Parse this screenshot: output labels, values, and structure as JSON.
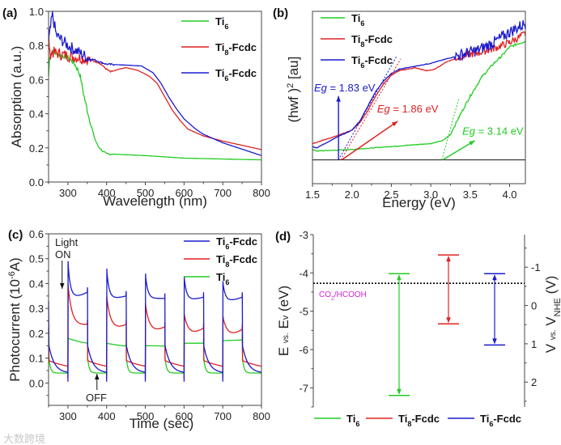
{
  "colors": {
    "Ti6": "#22cc22",
    "Ti8-Fcdc": "#e02020",
    "Ti6-Fcdc": "#1a1ad0",
    "redox": "#e020e0",
    "axis": "#444444"
  },
  "series_names": {
    "Ti6": {
      "base": "Ti",
      "sub": "6",
      "suffix": ""
    },
    "Ti8-Fcdc": {
      "base": "Ti",
      "sub": "8",
      "suffix": "-Fcdc"
    },
    "Ti6-Fcdc": {
      "base": "Ti",
      "sub": "6",
      "suffix": "-Fcdc"
    }
  },
  "watermark": "大数跨境",
  "chart_data": [
    {
      "panel": "(a)",
      "type": "line",
      "xlabel": "Wavelength (nm)",
      "ylabel": "Absorption (a.u.)",
      "xlim": [
        250,
        800
      ],
      "ylim": [
        0,
        1.0
      ],
      "xticks": [
        300,
        400,
        500,
        600,
        700,
        800
      ],
      "yticks": [
        0.0,
        0.2,
        0.4,
        0.6,
        0.8,
        1.0
      ],
      "legend_order": [
        "Ti6",
        "Ti8-Fcdc",
        "Ti6-Fcdc"
      ],
      "legend": "top-right",
      "series": [
        {
          "key": "Ti6",
          "x": [
            250,
            253,
            260,
            300,
            315,
            325,
            332,
            340,
            350,
            360,
            370,
            378,
            390,
            400,
            450,
            500,
            600,
            700,
            800
          ],
          "y": [
            0.62,
            0.74,
            0.76,
            0.73,
            0.7,
            0.66,
            0.62,
            0.52,
            0.42,
            0.33,
            0.25,
            0.21,
            0.18,
            0.165,
            0.16,
            0.155,
            0.14,
            0.135,
            0.13
          ]
        },
        {
          "key": "Ti8-Fcdc",
          "x": [
            250,
            253,
            260,
            300,
            350,
            380,
            400,
            410,
            430,
            450,
            480,
            510,
            530,
            550,
            570,
            590,
            610,
            650,
            700,
            800
          ],
          "y": [
            0.88,
            0.75,
            0.76,
            0.74,
            0.72,
            0.7,
            0.66,
            0.645,
            0.66,
            0.67,
            0.655,
            0.62,
            0.58,
            0.5,
            0.42,
            0.36,
            0.31,
            0.27,
            0.24,
            0.19
          ]
        },
        {
          "key": "Ti6-Fcdc",
          "x": [
            250,
            255,
            260,
            270,
            300,
            350,
            400,
            450,
            490,
            520,
            540,
            560,
            580,
            600,
            630,
            650,
            700,
            800
          ],
          "y": [
            0.82,
            0.9,
            0.98,
            0.86,
            0.8,
            0.73,
            0.69,
            0.685,
            0.68,
            0.64,
            0.58,
            0.5,
            0.43,
            0.37,
            0.31,
            0.28,
            0.23,
            0.155
          ]
        }
      ]
    },
    {
      "panel": "(b)",
      "type": "line",
      "xlabel": "Energy (eV)",
      "ylabel": {
        "pre": "(hwf )",
        "sup": "2",
        "post": " [au]"
      },
      "xlim": [
        1.5,
        4.2
      ],
      "ylim": [
        -0.16,
        1.0
      ],
      "xticks": [
        1.5,
        2.0,
        2.5,
        3.0,
        3.5,
        4.0
      ],
      "legend_order": [
        "Ti6",
        "Ti8-Fcdc",
        "Ti6-Fcdc"
      ],
      "legend": "top-left",
      "series": [
        {
          "key": "Ti6",
          "x": [
            1.5,
            1.55,
            2.0,
            2.5,
            3.0,
            3.15,
            3.25,
            3.35,
            3.5,
            3.65,
            3.8,
            3.9,
            4.0,
            4.2
          ],
          "y": [
            0.07,
            0.06,
            0.07,
            0.09,
            0.11,
            0.13,
            0.17,
            0.28,
            0.43,
            0.56,
            0.65,
            0.7,
            0.76,
            0.8
          ]
        },
        {
          "key": "Ti8-Fcdc",
          "x": [
            1.5,
            1.8,
            2.0,
            2.1,
            2.2,
            2.3,
            2.4,
            2.5,
            2.6,
            2.8,
            2.95,
            3.05,
            3.2,
            3.4,
            3.6,
            3.8,
            4.0,
            4.2
          ],
          "y": [
            0.11,
            0.16,
            0.2,
            0.25,
            0.33,
            0.43,
            0.51,
            0.57,
            0.6,
            0.62,
            0.6,
            0.61,
            0.66,
            0.7,
            0.72,
            0.75,
            0.79,
            0.85
          ]
        },
        {
          "key": "Ti6-Fcdc",
          "x": [
            1.5,
            1.55,
            1.8,
            2.0,
            2.1,
            2.2,
            2.3,
            2.4,
            2.5,
            2.6,
            2.8,
            3.0,
            3.2,
            3.4,
            3.6,
            3.8,
            4.0,
            4.2
          ],
          "y": [
            0.09,
            0.08,
            0.15,
            0.2,
            0.26,
            0.36,
            0.46,
            0.53,
            0.58,
            0.61,
            0.63,
            0.65,
            0.68,
            0.71,
            0.74,
            0.79,
            0.86,
            0.92
          ]
        }
      ],
      "tangents": [
        {
          "key": "Ti6-Fcdc",
          "from": [
            1.83,
            0
          ],
          "to": [
            2.57,
            0.7
          ]
        },
        {
          "key": "Ti8-Fcdc",
          "from": [
            1.86,
            0
          ],
          "to": [
            2.62,
            0.68
          ]
        },
        {
          "key": "Ti6",
          "from": [
            3.14,
            0
          ],
          "to": [
            3.36,
            0.42
          ]
        }
      ],
      "annotations": [
        {
          "key": "Ti6-Fcdc",
          "label": "Eg",
          "value": " = 1.83 eV",
          "arrow_from": [
            1.83,
            0
          ],
          "arrow_to": [
            1.83,
            0.43
          ],
          "text_at": [
            1.52,
            0.46
          ]
        },
        {
          "key": "Ti8-Fcdc",
          "label": "Eg",
          "value": " = 1.86 eV",
          "arrow_from": [
            1.87,
            0
          ],
          "arrow_to": [
            2.58,
            0.26
          ],
          "text_at": [
            2.32,
            0.32
          ]
        },
        {
          "key": "Ti6",
          "label": "Eg",
          "value": " = 3.14 eV",
          "arrow_from": [
            3.15,
            0
          ],
          "arrow_to": [
            3.56,
            0.13
          ],
          "text_at": [
            3.4,
            0.17
          ]
        }
      ]
    },
    {
      "panel": "(c)",
      "type": "line",
      "xlabel": "Time (sec)",
      "ylabel": {
        "pre": "Photocurrent (10",
        "sup": "-6",
        "post": "A)"
      },
      "xlim": [
        250,
        800
      ],
      "ylim": [
        -0.09,
        0.6
      ],
      "xticks": [
        300,
        400,
        500,
        600,
        700,
        800
      ],
      "yticks": [
        0.0,
        0.1,
        0.2,
        0.3,
        0.4,
        0.5,
        0.6
      ],
      "legend_order": [
        "Ti6-Fcdc",
        "Ti8-Fcdc",
        "Ti6"
      ],
      "legend": "top-right",
      "light_on_times": [
        300,
        400,
        500,
        600,
        700
      ],
      "on_duration": 50,
      "annotations": [
        {
          "text": [
            "Light",
            "ON"
          ],
          "at_time": 285,
          "direction": "down"
        },
        {
          "text": [
            "OFF"
          ],
          "at_time": 375,
          "direction": "up"
        }
      ],
      "series": [
        {
          "key": "Ti6-Fcdc",
          "start": 0.33,
          "off_start": 0.15,
          "off_end": 0.04,
          "dip": 0.005,
          "peak": [
            0.49,
            0.46,
            0.44,
            0.43,
            0.41
          ],
          "plateau": [
            0.345,
            0.34,
            0.34,
            0.335,
            0.33
          ],
          "on_end": [
            0.365,
            0.35,
            0.34,
            0.345,
            0.345
          ]
        },
        {
          "key": "Ti8-Fcdc",
          "start": 0.22,
          "off_start": 0.09,
          "off_end": 0.05,
          "dip": 0.02,
          "peak": [
            0.4,
            0.35,
            0.32,
            0.28,
            0.27
          ],
          "plateau": [
            0.23,
            0.215,
            0.205,
            0.195,
            0.19
          ],
          "on_end": [
            0.235,
            0.235,
            0.225,
            0.22,
            0.215
          ]
        },
        {
          "key": "Ti6",
          "start": 0.18,
          "off_start": 0.1,
          "off_end": 0.04,
          "dip": 0.04,
          "peak": [
            0.18,
            0.16,
            0.15,
            0.16,
            0.17
          ],
          "plateau": [
            0.145,
            0.14,
            0.148,
            0.16,
            0.175
          ],
          "on_end": [
            0.145,
            0.14,
            0.148,
            0.16,
            0.175
          ]
        }
      ]
    },
    {
      "panel": "(d)",
      "type": "bar",
      "ylabel": {
        "pre": "E ",
        "small": "vs.",
        "mid": " E",
        "sub": "v",
        "post": " (eV)"
      },
      "ylabel_right": {
        "pre": "V ",
        "small": "vs.",
        "mid": " V",
        "sub": "NHE",
        "post": " (V)"
      },
      "ylim": [
        -7.5,
        -3
      ],
      "yticks": [
        -3,
        -4,
        -5,
        -6,
        -7
      ],
      "yticks_right": [
        -1,
        0,
        1,
        2
      ],
      "right_offset_eV": -4.85,
      "reference_line": {
        "label": {
          "pre": "CO",
          "sub": "2",
          "post": "/HCOOH"
        },
        "value": -4.27
      },
      "legend_order": [
        "Ti6",
        "Ti8-Fcdc",
        "Ti6-Fcdc"
      ],
      "legend": "bottom",
      "levels": [
        {
          "key": "Ti6",
          "cb": -4.02,
          "vb": -7.2
        },
        {
          "key": "Ti8-Fcdc",
          "cb": -3.53,
          "vb": -5.33
        },
        {
          "key": "Ti6-Fcdc",
          "cb": -4.02,
          "vb": -5.88
        }
      ]
    }
  ]
}
